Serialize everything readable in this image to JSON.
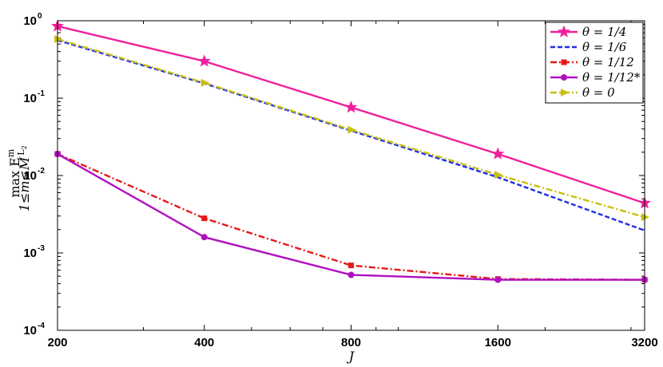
{
  "chart_data": {
    "type": "line",
    "xscale": "log",
    "yscale": "log",
    "xlim": [
      200,
      3200
    ],
    "ylim": [
      0.0001,
      1
    ],
    "x": [
      200,
      400,
      800,
      1600,
      3200
    ],
    "xticks": [
      "200",
      "400",
      "800",
      "1600",
      "3200"
    ],
    "ytick_base": "10",
    "ytick_exponents": [
      "0",
      "-1",
      "-2",
      "-3",
      "-4"
    ],
    "xlabel": "J",
    "ylabel": "max E",
    "ylabel_sub": "1≤m≤M",
    "ylabel_sup": "m",
    "ylabel_subscript": "L",
    "ylabel_subsub": "2",
    "grid": false,
    "legend_position": "top-right",
    "series": [
      {
        "name": "θ = 1/4",
        "color": "#f0209c",
        "dash": "solid",
        "marker": "star",
        "values": [
          0.85,
          0.3,
          0.076,
          0.019,
          0.0044
        ]
      },
      {
        "name": "θ = 1/6",
        "color": "#1f2ee6",
        "dash": "dashed",
        "marker": "none",
        "values": [
          0.56,
          0.155,
          0.038,
          0.0095,
          0.00195
        ]
      },
      {
        "name": "θ = 1/12",
        "color": "#e81818",
        "dash": "dashdot",
        "marker": "square",
        "values": [
          0.019,
          0.0028,
          0.00069,
          0.00046,
          0.00045
        ]
      },
      {
        "name": "θ = 1/12*",
        "color": "#b010c0",
        "dash": "solid",
        "marker": "circle",
        "values": [
          0.019,
          0.0016,
          0.00052,
          0.00045,
          0.00045
        ]
      },
      {
        "name": "θ = 0",
        "color": "#c8c010",
        "dash": "dashdot",
        "marker": "triangle-right",
        "values": [
          0.58,
          0.158,
          0.039,
          0.0102,
          0.0029
        ]
      }
    ]
  }
}
